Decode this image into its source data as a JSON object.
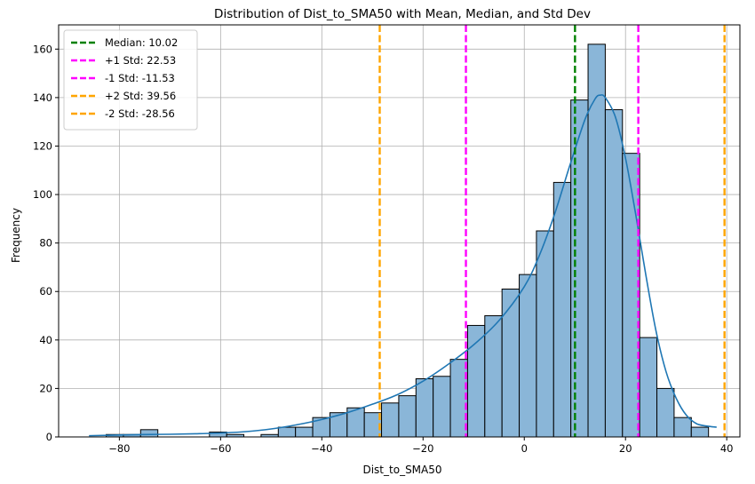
{
  "chart_data": {
    "type": "histogram",
    "title": "Distribution of Dist_to_SMA50 with Mean, Median, and Std Dev",
    "xlabel": "Dist_to_SMA50",
    "ylabel": "Frequency",
    "xlim": [
      -92,
      42.6
    ],
    "ylim": [
      0,
      170
    ],
    "xticks": [
      -80,
      -60,
      -40,
      -20,
      0,
      20,
      40
    ],
    "yticks": [
      0,
      20,
      40,
      60,
      80,
      100,
      120,
      140,
      160
    ],
    "grid": true,
    "legend_position": "top-left",
    "bar_color": "#8ab6d8",
    "bar_edge_color": "#000000",
    "kde_color": "#1f77b4",
    "bins": [
      {
        "x0": -86.0,
        "x1": -82.6,
        "count": 0
      },
      {
        "x0": -82.6,
        "x1": -79.2,
        "count": 1
      },
      {
        "x0": -79.2,
        "x1": -75.8,
        "count": 1
      },
      {
        "x0": -75.8,
        "x1": -72.4,
        "count": 3
      },
      {
        "x0": -72.4,
        "x1": -69.0,
        "count": 0
      },
      {
        "x0": -69.0,
        "x1": -65.6,
        "count": 0
      },
      {
        "x0": -65.6,
        "x1": -62.2,
        "count": 0
      },
      {
        "x0": -62.2,
        "x1": -58.8,
        "count": 2
      },
      {
        "x0": -58.8,
        "x1": -55.4,
        "count": 1
      },
      {
        "x0": -55.4,
        "x1": -52.0,
        "count": 0
      },
      {
        "x0": -52.0,
        "x1": -48.6,
        "count": 1
      },
      {
        "x0": -48.6,
        "x1": -45.2,
        "count": 4
      },
      {
        "x0": -45.2,
        "x1": -41.8,
        "count": 4
      },
      {
        "x0": -41.8,
        "x1": -38.4,
        "count": 8
      },
      {
        "x0": -38.4,
        "x1": -35.0,
        "count": 10
      },
      {
        "x0": -35.0,
        "x1": -31.6,
        "count": 12
      },
      {
        "x0": -31.6,
        "x1": -28.2,
        "count": 10
      },
      {
        "x0": -28.2,
        "x1": -24.8,
        "count": 14
      },
      {
        "x0": -24.8,
        "x1": -21.4,
        "count": 17
      },
      {
        "x0": -21.4,
        "x1": -18.0,
        "count": 24
      },
      {
        "x0": -18.0,
        "x1": -14.6,
        "count": 25
      },
      {
        "x0": -14.6,
        "x1": -11.2,
        "count": 32
      },
      {
        "x0": -11.2,
        "x1": -7.8,
        "count": 46
      },
      {
        "x0": -7.8,
        "x1": -4.4,
        "count": 50
      },
      {
        "x0": -4.4,
        "x1": -1.0,
        "count": 61
      },
      {
        "x0": -1.0,
        "x1": 2.4,
        "count": 67
      },
      {
        "x0": 2.4,
        "x1": 5.8,
        "count": 85
      },
      {
        "x0": 5.8,
        "x1": 9.2,
        "count": 105
      },
      {
        "x0": 9.2,
        "x1": 12.6,
        "count": 139
      },
      {
        "x0": 12.6,
        "x1": 16.0,
        "count": 162
      },
      {
        "x0": 16.0,
        "x1": 19.4,
        "count": 135
      },
      {
        "x0": 19.4,
        "x1": 22.8,
        "count": 117
      },
      {
        "x0": 22.8,
        "x1": 26.2,
        "count": 41
      },
      {
        "x0": 26.2,
        "x1": 29.6,
        "count": 20
      },
      {
        "x0": 29.6,
        "x1": 33.0,
        "count": 8
      },
      {
        "x0": 33.0,
        "x1": 36.4,
        "count": 4
      }
    ],
    "kde": {
      "x": [
        -86,
        -80,
        -75,
        -70,
        -65,
        -60,
        -55,
        -50,
        -45,
        -40,
        -35,
        -30,
        -25,
        -20,
        -15,
        -10,
        -5,
        0,
        3,
        6,
        9,
        12,
        14,
        15,
        16,
        18,
        20,
        22,
        24,
        26,
        28,
        30,
        32,
        34,
        36,
        38
      ],
      "y": [
        0.5,
        0.8,
        1.0,
        1.1,
        1.3,
        1.6,
        2.2,
        3.3,
        5.0,
        7.2,
        10.0,
        13.5,
        17.5,
        23.0,
        30.0,
        38.0,
        48.0,
        62.0,
        75.0,
        92.0,
        112.0,
        131.0,
        139.5,
        141.0,
        140.0,
        132.0,
        115.0,
        92.0,
        67.0,
        44.0,
        27.0,
        16.0,
        9.0,
        5.5,
        4.5,
        4.0
      ]
    },
    "reference_lines": [
      {
        "label": "Median: 10.02",
        "value": 10.02,
        "color": "#008000"
      },
      {
        "label": "+1 Std: 22.53",
        "value": 22.53,
        "color": "#ff00ff"
      },
      {
        "label": "-1 Std: -11.53",
        "value": -11.53,
        "color": "#ff00ff"
      },
      {
        "label": "+2 Std: 39.56",
        "value": 39.56,
        "color": "#ffa500"
      },
      {
        "label": "-2 Std: -28.56",
        "value": -28.56,
        "color": "#ffa500"
      }
    ]
  }
}
